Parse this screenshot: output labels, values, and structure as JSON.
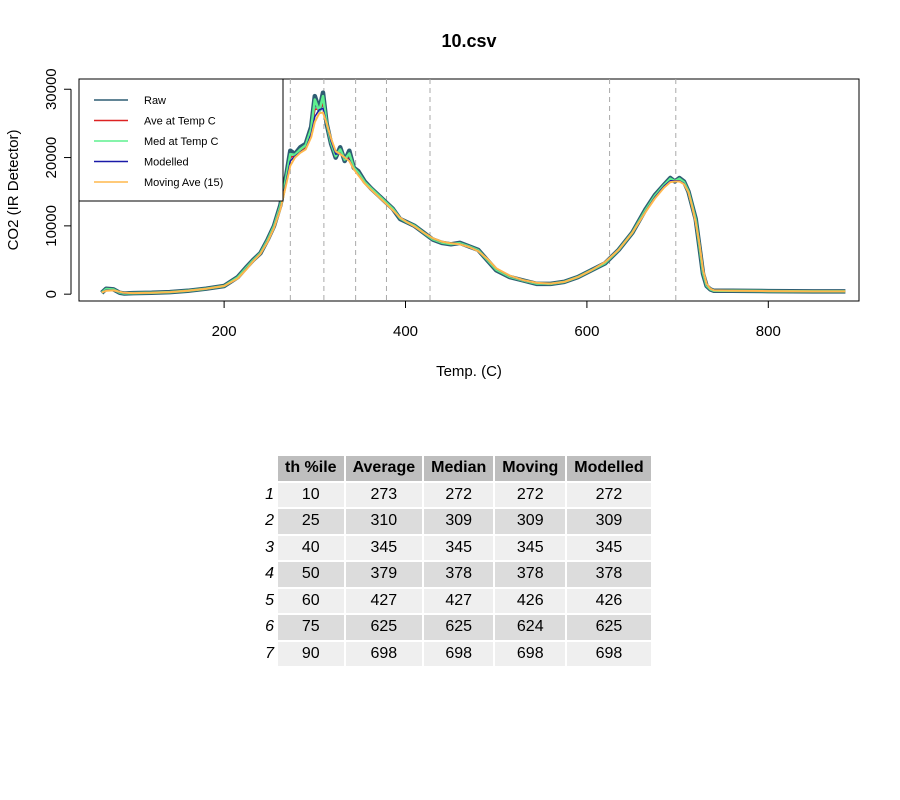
{
  "chart_data": {
    "type": "line",
    "title": "10.csv",
    "xlabel": "Temp. (C)",
    "ylabel": "CO2 (IR Detector)",
    "xlim": [
      40,
      900
    ],
    "ylim": [
      -1000,
      31500
    ],
    "x_ticks": [
      200,
      400,
      600,
      800
    ],
    "y_ticks": [
      0,
      10000,
      20000,
      30000
    ],
    "grid": false,
    "legend_position": "top-left",
    "vlines": [
      273,
      310,
      345,
      379,
      427,
      625,
      698
    ],
    "series": [
      {
        "name": "Raw",
        "color": "#2e5d73",
        "x": [
          65,
          70,
          78,
          85,
          90,
          100,
          120,
          140,
          160,
          180,
          200,
          215,
          225,
          232,
          240,
          248,
          255,
          262,
          268,
          273,
          278,
          284,
          290,
          296,
          300,
          305,
          309,
          313,
          318,
          323,
          328,
          333,
          338,
          343,
          348,
          355,
          362,
          370,
          378,
          386,
          394,
          402,
          410,
          420,
          430,
          440,
          450,
          460,
          470,
          480,
          490,
          500,
          515,
          530,
          545,
          560,
          575,
          590,
          605,
          620,
          635,
          650,
          665,
          675,
          685,
          692,
          697,
          702,
          707,
          712,
          716,
          720,
          724,
          728,
          732,
          736,
          740,
          760,
          800,
          850,
          885
        ],
        "y": [
          200,
          800,
          700,
          200,
          100,
          150,
          200,
          300,
          500,
          800,
          1200,
          2500,
          4000,
          5000,
          6000,
          8000,
          10000,
          13000,
          17000,
          21000,
          20500,
          21500,
          22000,
          24500,
          29000,
          27000,
          29500,
          25000,
          22000,
          20000,
          21500,
          19500,
          21000,
          18500,
          18000,
          16500,
          15500,
          14500,
          13500,
          12500,
          11000,
          10500,
          10000,
          9000,
          8000,
          7500,
          7300,
          7500,
          7000,
          6500,
          5000,
          3500,
          2500,
          2000,
          1500,
          1500,
          1800,
          2500,
          3500,
          4500,
          6500,
          9000,
          12500,
          14500,
          16000,
          17000,
          16500,
          17000,
          16500,
          15000,
          13000,
          11000,
          7000,
          3000,
          1200,
          700,
          500,
          500,
          450,
          400,
          400
        ]
      },
      {
        "name": "Ave at Temp C",
        "color": "#dd2222",
        "x": [
          65,
          70,
          78,
          85,
          90,
          100,
          120,
          140,
          160,
          180,
          200,
          215,
          225,
          232,
          240,
          248,
          255,
          262,
          268,
          273,
          278,
          284,
          290,
          296,
          300,
          305,
          309,
          313,
          318,
          323,
          328,
          333,
          338,
          343,
          348,
          355,
          362,
          370,
          378,
          386,
          394,
          402,
          410,
          420,
          430,
          440,
          450,
          460,
          470,
          480,
          490,
          500,
          515,
          530,
          545,
          560,
          575,
          590,
          605,
          620,
          635,
          650,
          665,
          675,
          685,
          692,
          697,
          702,
          707,
          712,
          716,
          720,
          724,
          728,
          732,
          736,
          740,
          760,
          800,
          850,
          885
        ],
        "y": [
          200,
          700,
          650,
          250,
          120,
          150,
          200,
          300,
          500,
          800,
          1200,
          2400,
          3900,
          4900,
          6000,
          7900,
          9900,
          12800,
          16500,
          20000,
          20300,
          21000,
          21500,
          23800,
          27000,
          27200,
          27800,
          25200,
          22300,
          20400,
          20800,
          19800,
          19900,
          18400,
          17600,
          16300,
          15400,
          14400,
          13400,
          12400,
          11200,
          10500,
          9900,
          9000,
          8100,
          7600,
          7400,
          7400,
          7000,
          6400,
          5100,
          3700,
          2600,
          2000,
          1600,
          1500,
          1800,
          2500,
          3500,
          4600,
          6500,
          9000,
          12300,
          14300,
          15900,
          16700,
          16600,
          16700,
          16300,
          15000,
          13000,
          10800,
          7200,
          3300,
          1300,
          750,
          520,
          500,
          450,
          410,
          400
        ]
      },
      {
        "name": "Med at Temp C",
        "color": "#5ff08f",
        "x": [
          65,
          70,
          78,
          85,
          90,
          100,
          120,
          140,
          160,
          180,
          200,
          215,
          225,
          232,
          240,
          248,
          255,
          262,
          268,
          273,
          278,
          284,
          290,
          296,
          300,
          305,
          309,
          313,
          318,
          323,
          328,
          333,
          338,
          343,
          348,
          355,
          362,
          370,
          378,
          386,
          394,
          402,
          410,
          420,
          430,
          440,
          450,
          460,
          470,
          480,
          490,
          500,
          515,
          530,
          545,
          560,
          575,
          590,
          605,
          620,
          635,
          650,
          665,
          675,
          685,
          692,
          697,
          702,
          707,
          712,
          716,
          720,
          724,
          728,
          732,
          736,
          740,
          760,
          800,
          850,
          885
        ],
        "y": [
          200,
          750,
          680,
          230,
          110,
          150,
          200,
          300,
          500,
          800,
          1200,
          2450,
          3950,
          4950,
          6000,
          7950,
          9950,
          12900,
          16800,
          20500,
          20400,
          21200,
          21800,
          24200,
          28500,
          26800,
          29000,
          25100,
          22100,
          20200,
          21200,
          19700,
          20600,
          18500,
          17800,
          16400,
          15500,
          14500,
          13500,
          12500,
          11100,
          10500,
          10000,
          9000,
          8050,
          7550,
          7350,
          7450,
          7000,
          6450,
          5050,
          3600,
          2550,
          2000,
          1550,
          1500,
          1800,
          2500,
          3500,
          4550,
          6500,
          9000,
          12400,
          14400,
          15950,
          16900,
          16550,
          16900,
          16400,
          15000,
          13000,
          10900,
          7100,
          3150,
          1250,
          720,
          510,
          500,
          450,
          405,
          400
        ]
      },
      {
        "name": "Modelled",
        "color": "#1a1aa8",
        "x": [
          65,
          70,
          78,
          85,
          90,
          100,
          120,
          140,
          160,
          180,
          200,
          215,
          225,
          232,
          240,
          248,
          255,
          262,
          268,
          273,
          278,
          284,
          290,
          296,
          300,
          305,
          309,
          313,
          318,
          323,
          328,
          333,
          338,
          343,
          348,
          355,
          362,
          370,
          378,
          386,
          394,
          402,
          410,
          420,
          430,
          440,
          450,
          460,
          470,
          480,
          490,
          500,
          515,
          530,
          545,
          560,
          575,
          590,
          605,
          620,
          635,
          650,
          665,
          675,
          685,
          692,
          697,
          702,
          707,
          712,
          716,
          720,
          724,
          728,
          732,
          736,
          740,
          760,
          800,
          850,
          885
        ],
        "y": [
          200,
          600,
          600,
          280,
          140,
          150,
          200,
          300,
          500,
          800,
          1200,
          2300,
          3800,
          4850,
          5950,
          7800,
          9800,
          12600,
          16200,
          19500,
          20200,
          20800,
          21300,
          23500,
          26000,
          27000,
          27200,
          25000,
          22400,
          20500,
          20600,
          19900,
          19700,
          18300,
          17500,
          16200,
          15300,
          14300,
          13300,
          12300,
          11200,
          10500,
          9900,
          9000,
          8150,
          7650,
          7450,
          7350,
          6950,
          6350,
          5150,
          3750,
          2650,
          2000,
          1600,
          1500,
          1800,
          2500,
          3500,
          4650,
          6500,
          9000,
          12200,
          14200,
          15800,
          16600,
          16600,
          16600,
          16200,
          14900,
          12900,
          10600,
          7300,
          3400,
          1400,
          780,
          530,
          500,
          450,
          410,
          400
        ]
      },
      {
        "name": "Moving Ave (15)",
        "color": "#ffb84d",
        "x": [
          65,
          70,
          78,
          85,
          90,
          100,
          120,
          140,
          160,
          180,
          200,
          215,
          225,
          232,
          240,
          248,
          255,
          262,
          268,
          273,
          278,
          284,
          290,
          296,
          300,
          305,
          309,
          313,
          318,
          323,
          328,
          333,
          338,
          343,
          348,
          355,
          362,
          370,
          378,
          386,
          394,
          402,
          410,
          420,
          430,
          440,
          450,
          460,
          470,
          480,
          490,
          500,
          515,
          530,
          545,
          560,
          575,
          590,
          605,
          620,
          635,
          650,
          665,
          675,
          685,
          692,
          697,
          702,
          707,
          712,
          716,
          720,
          724,
          728,
          732,
          736,
          740,
          760,
          800,
          850,
          885
        ],
        "y": [
          250,
          500,
          550,
          350,
          200,
          150,
          200,
          300,
          500,
          800,
          1200,
          2300,
          3700,
          4800,
          5900,
          7700,
          9700,
          12400,
          15800,
          18800,
          20000,
          20700,
          21200,
          23000,
          25200,
          26500,
          26600,
          25000,
          22800,
          20900,
          20500,
          20000,
          19500,
          18300,
          17400,
          16200,
          15300,
          14300,
          13300,
          12300,
          11200,
          10500,
          9900,
          9000,
          8200,
          7700,
          7450,
          7300,
          6900,
          6300,
          5200,
          3800,
          2700,
          2050,
          1650,
          1550,
          1800,
          2500,
          3500,
          4700,
          6500,
          9000,
          12100,
          14000,
          15600,
          16400,
          16500,
          16500,
          16100,
          14900,
          12900,
          10500,
          7400,
          3600,
          1500,
          800,
          550,
          500,
          450,
          410,
          400
        ]
      }
    ]
  },
  "table": {
    "headers": [
      "th %ile",
      "Average",
      "Median",
      "Moving",
      "Modelled"
    ],
    "rows": [
      {
        "n": "1",
        "cells": [
          "10",
          "273",
          "272",
          "272",
          "272"
        ]
      },
      {
        "n": "2",
        "cells": [
          "25",
          "310",
          "309",
          "309",
          "309"
        ]
      },
      {
        "n": "3",
        "cells": [
          "40",
          "345",
          "345",
          "345",
          "345"
        ]
      },
      {
        "n": "4",
        "cells": [
          "50",
          "379",
          "378",
          "378",
          "378"
        ]
      },
      {
        "n": "5",
        "cells": [
          "60",
          "427",
          "427",
          "426",
          "426"
        ]
      },
      {
        "n": "6",
        "cells": [
          "75",
          "625",
          "625",
          "624",
          "625"
        ]
      },
      {
        "n": "7",
        "cells": [
          "90",
          "698",
          "698",
          "698",
          "698"
        ]
      }
    ]
  }
}
